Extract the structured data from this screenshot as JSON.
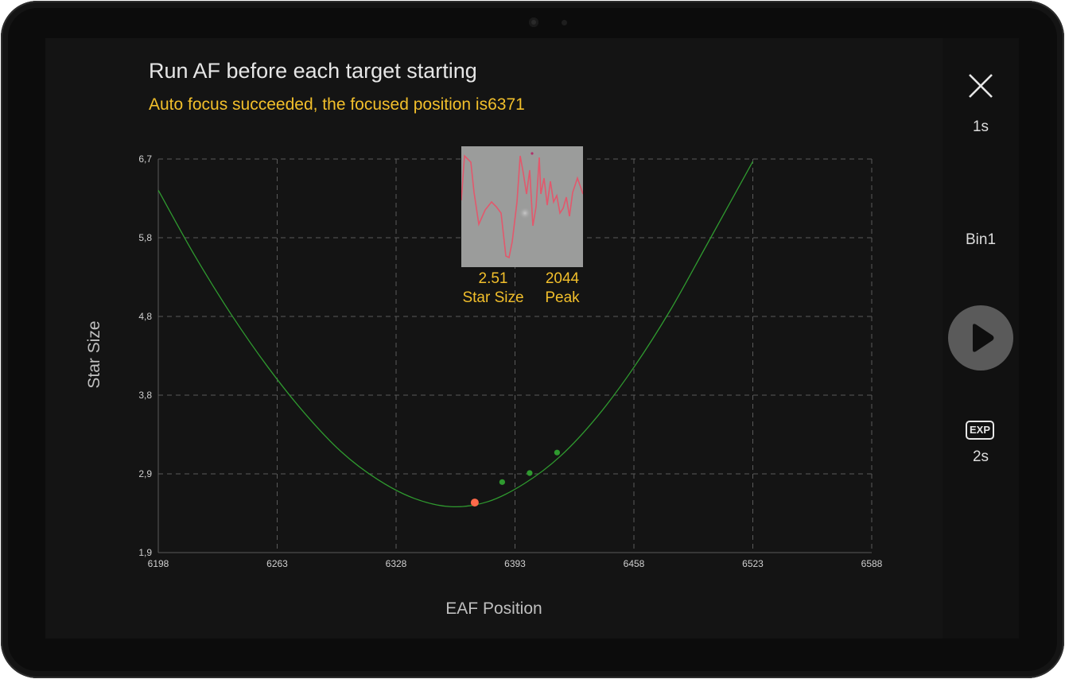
{
  "app": {
    "title": "Run AF before each target starting",
    "status": "Auto focus succeeded, the focused position is6371"
  },
  "preview": {
    "star_size_value": "2.51",
    "star_size_label": "Star Size",
    "peak_value": "2044",
    "peak_label": "Peak"
  },
  "side_panel": {
    "close_icon": "close-icon",
    "top_exposure": "1s",
    "bin": "Bin1",
    "play_icon": "play-icon",
    "exp_icon_label": "EXP",
    "exposure": "2s"
  },
  "colors": {
    "curve": "#2f9a2f",
    "point": "#2f9a2f",
    "focus_point": "#ff6a4a",
    "accent": "#f2bf2b"
  },
  "chart_data": {
    "type": "scatter",
    "xlabel": "EAF Position",
    "ylabel": "Star Size",
    "xlim": [
      6198,
      6588
    ],
    "ylim": [
      1.9,
      6.7
    ],
    "x_ticks": [
      "6198",
      "6263",
      "6328",
      "6393",
      "6458",
      "6523",
      "6588"
    ],
    "y_ticks": [
      "1,9",
      "2,9",
      "3,8",
      "4,8",
      "5,8",
      "6,7"
    ],
    "grid": true,
    "points": [
      {
        "x": 6371,
        "y": 2.51,
        "type": "focus"
      },
      {
        "x": 6386,
        "y": 2.76
      },
      {
        "x": 6401,
        "y": 2.87
      },
      {
        "x": 6416,
        "y": 3.12
      }
    ],
    "fit_curve": {
      "x": [
        6198,
        6218,
        6238,
        6258,
        6278,
        6298,
        6318,
        6338,
        6358,
        6378,
        6398,
        6418,
        6438,
        6458,
        6478,
        6498,
        6523
      ],
      "y": [
        6.32,
        5.52,
        4.8,
        4.16,
        3.6,
        3.13,
        2.79,
        2.56,
        2.46,
        2.52,
        2.74,
        3.08,
        3.56,
        4.16,
        4.86,
        5.66,
        6.67
      ]
    }
  }
}
